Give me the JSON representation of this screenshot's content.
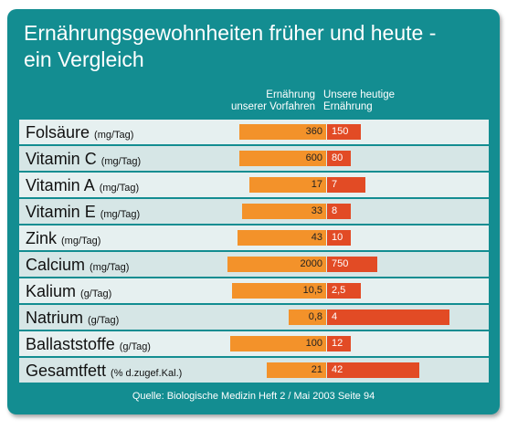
{
  "title_line1": "Ernährungsgewohnheiten früher und heute -",
  "title_line2": "ein Vergleich",
  "colors": {
    "panel": "#138d91",
    "old_bar": "#f3922a",
    "new_bar": "#e24b25"
  },
  "chart_data": {
    "type": "bar",
    "orientation": "horizontal-diverging",
    "series": [
      {
        "name": "Ernährung unserer Vorfahren",
        "values": [
          "360",
          "600",
          "17",
          "33",
          "43",
          "2000",
          "10,5",
          "0,8",
          "100",
          "21"
        ]
      },
      {
        "name": "Unsere heutige Ernährung",
        "values": [
          "150",
          "80",
          "7",
          "8",
          "10",
          "750",
          "2,5",
          "4",
          "12",
          "42"
        ]
      }
    ],
    "series_labels": {
      "old_line1": "Ernährung",
      "old_line2": "unserer Vorfahren",
      "new_line1": "Unsere heutige",
      "new_line2": "Ernährung"
    },
    "rows": [
      {
        "name": "Folsäure",
        "unit": "(mg/Tag)",
        "old": "360",
        "new": "150",
        "old_fill": 0.35,
        "new_fill": 0.17
      },
      {
        "name": "Vitamin C",
        "unit": "(mg/Tag)",
        "old": "600",
        "new": "80",
        "old_fill": 0.35,
        "new_fill": 0.12
      },
      {
        "name": "Vitamin A",
        "unit": "(mg/Tag)",
        "old": "17",
        "new": "7",
        "old_fill": 0.31,
        "new_fill": 0.19
      },
      {
        "name": "Vitamin E",
        "unit": "(mg/Tag)",
        "old": "33",
        "new": "8",
        "old_fill": 0.34,
        "new_fill": 0.12
      },
      {
        "name": "Zink",
        "unit": "(mg/Tag)",
        "old": "43",
        "new": "10",
        "old_fill": 0.36,
        "new_fill": 0.12
      },
      {
        "name": "Calcium",
        "unit": "(mg/Tag)",
        "old": "2000",
        "new": "750",
        "old_fill": 0.4,
        "new_fill": 0.25
      },
      {
        "name": "Kalium",
        "unit": "(g/Tag)",
        "old": "10,5",
        "new": "2,5",
        "old_fill": 0.38,
        "new_fill": 0.17
      },
      {
        "name": "Natrium",
        "unit": "(g/Tag)",
        "old": "0,8",
        "new": "4",
        "old_fill": 0.15,
        "new_fill": 0.61
      },
      {
        "name": "Ballaststoffe",
        "unit": "(g/Tag)",
        "old": "100",
        "new": "12",
        "old_fill": 0.39,
        "new_fill": 0.12
      },
      {
        "name": "Gesamtfett",
        "unit": "(% d.zugef.Kal.)",
        "old": "21",
        "new": "42",
        "old_fill": 0.24,
        "new_fill": 0.46
      }
    ]
  },
  "source": "Quelle: Biologische Medizin Heft 2 / Mai 2003 Seite 94"
}
